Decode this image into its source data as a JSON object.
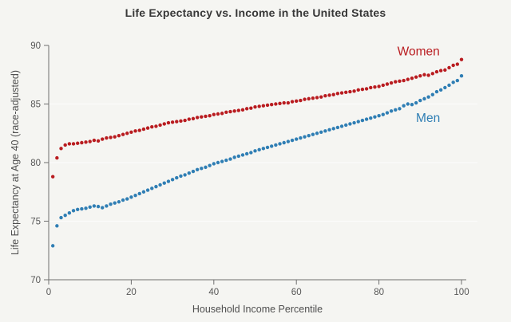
{
  "page": {
    "background_color": "#f5f5f2"
  },
  "chart_data": {
    "type": "scatter",
    "title": "Life Expectancy vs. Income in the United States",
    "xlabel": "Household Income Percentile",
    "ylabel": "Life Expectancy at Age 40 (race-adjusted)",
    "xlim": [
      0,
      104
    ],
    "ylim": [
      70,
      90
    ],
    "xticks": [
      0,
      20,
      40,
      60,
      80,
      100
    ],
    "yticks": [
      70,
      75,
      80,
      85,
      90
    ],
    "gridlines_y": [
      75,
      80,
      85
    ],
    "grid": "faint horizontal only",
    "legend_position": "inline text annotations near right end of each series",
    "x_range": [
      1,
      100
    ],
    "series": [
      {
        "name": "Women",
        "color": "#b91c20",
        "values": [
          78.8,
          80.4,
          81.2,
          81.5,
          81.6,
          81.6,
          81.65,
          81.7,
          81.75,
          81.8,
          81.9,
          81.85,
          82.0,
          82.1,
          82.15,
          82.2,
          82.3,
          82.4,
          82.5,
          82.6,
          82.7,
          82.75,
          82.85,
          82.95,
          83.05,
          83.1,
          83.2,
          83.3,
          83.4,
          83.45,
          83.5,
          83.55,
          83.6,
          83.7,
          83.75,
          83.85,
          83.9,
          83.95,
          84.0,
          84.1,
          84.15,
          84.2,
          84.3,
          84.35,
          84.4,
          84.45,
          84.5,
          84.6,
          84.65,
          84.75,
          84.8,
          84.85,
          84.9,
          84.95,
          85.0,
          85.05,
          85.1,
          85.1,
          85.2,
          85.25,
          85.3,
          85.4,
          85.45,
          85.5,
          85.55,
          85.6,
          85.7,
          85.75,
          85.8,
          85.9,
          85.95,
          86.0,
          86.05,
          86.1,
          86.2,
          86.25,
          86.3,
          86.4,
          86.45,
          86.5,
          86.6,
          86.7,
          86.8,
          86.9,
          86.95,
          87.0,
          87.1,
          87.2,
          87.3,
          87.4,
          87.5,
          87.45,
          87.6,
          87.75,
          87.85,
          87.9,
          88.1,
          88.3,
          88.4,
          88.8
        ]
      },
      {
        "name": "Men",
        "color": "#2f7eb4",
        "values": [
          72.9,
          74.6,
          75.3,
          75.5,
          75.7,
          75.9,
          76.0,
          76.05,
          76.1,
          76.2,
          76.3,
          76.25,
          76.15,
          76.3,
          76.45,
          76.55,
          76.65,
          76.8,
          76.9,
          77.05,
          77.2,
          77.35,
          77.5,
          77.65,
          77.8,
          77.95,
          78.1,
          78.25,
          78.4,
          78.55,
          78.7,
          78.85,
          78.95,
          79.1,
          79.25,
          79.4,
          79.5,
          79.6,
          79.75,
          79.9,
          80.0,
          80.1,
          80.2,
          80.3,
          80.45,
          80.55,
          80.65,
          80.75,
          80.85,
          81.0,
          81.1,
          81.2,
          81.3,
          81.4,
          81.5,
          81.6,
          81.7,
          81.8,
          81.9,
          82.0,
          82.1,
          82.2,
          82.3,
          82.4,
          82.5,
          82.6,
          82.7,
          82.8,
          82.9,
          83.0,
          83.1,
          83.2,
          83.3,
          83.4,
          83.5,
          83.6,
          83.7,
          83.8,
          83.9,
          84.0,
          84.1,
          84.25,
          84.4,
          84.5,
          84.6,
          84.85,
          85.0,
          84.95,
          85.1,
          85.3,
          85.45,
          85.6,
          85.8,
          86.05,
          86.2,
          86.4,
          86.6,
          86.85,
          87.0,
          87.4
        ]
      }
    ],
    "annotations": [
      {
        "text": "Women",
        "x": 89.6,
        "y": 89.5,
        "color": "#b91c20"
      },
      {
        "text": "Men",
        "x": 91.9,
        "y": 83.8,
        "color": "#2f7eb4"
      }
    ]
  },
  "style": {
    "background": "#f5f5f2",
    "axis_color": "#6f6f6f",
    "tick_label_color": "#565656",
    "grid_color": "#fdfdfc",
    "title_color": "#383838",
    "axis_title_color": "#4f4f4f",
    "dot_radius": 2.2
  }
}
